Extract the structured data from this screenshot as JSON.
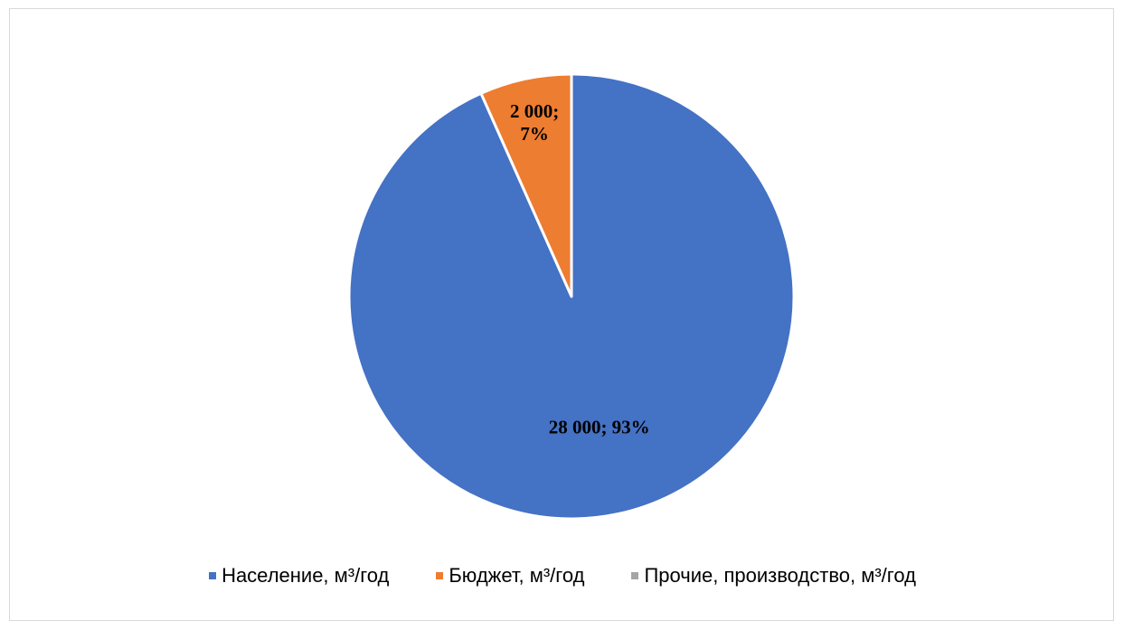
{
  "chart_data": {
    "type": "pie",
    "categories": [
      "Население, м³/год",
      "Бюджет, м³/год",
      "Прочие, производство, м³/год"
    ],
    "values": [
      28000,
      2000,
      0
    ],
    "data_labels": [
      {
        "lines": [
          "28 000; 93%"
        ]
      },
      {
        "lines": [
          "2 000;",
          "7%"
        ]
      },
      {
        "lines": []
      }
    ],
    "colors": [
      "#4472c4",
      "#ed7d31",
      "#a5a5a5"
    ],
    "start_angle_deg": 0,
    "direction": "clockwise",
    "slice_border_color": "#ffffff",
    "legend_position": "bottom"
  }
}
